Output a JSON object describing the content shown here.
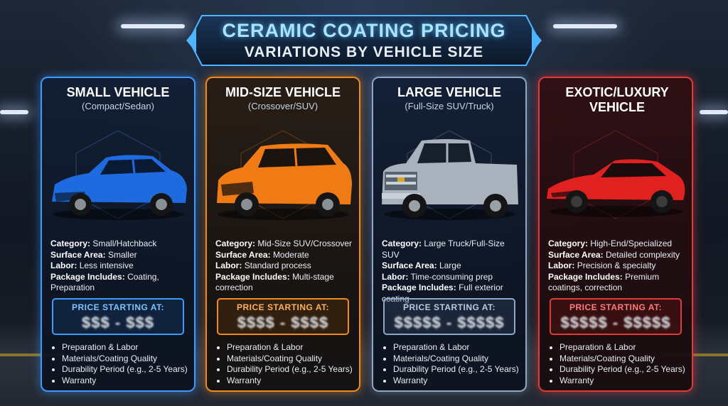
{
  "title": {
    "line1": "CERAMIC COATING PRICING",
    "line2": "VARIATIONS BY VEHICLE SIZE"
  },
  "cards": [
    {
      "title": "SMALL VEHICLE",
      "subtitle": "(Compact/Sedan)",
      "car_color": "#1e6be0",
      "specs": {
        "category_label": "Category:",
        "category": "Small/Hatchback",
        "surface_label": "Surface Area:",
        "surface": "Smaller",
        "labor_label": "Labor:",
        "labor": "Less intensive",
        "package_label": "Package Includes:",
        "package": "Coating, Preparation"
      },
      "price_label": "PRICE STARTING AT:",
      "price": "$$$ - $$$",
      "factors": [
        "Preparation & Labor",
        "Materials/Coating Quality",
        "Durability Period (e.g., 2-5 Years)",
        "Warranty"
      ]
    },
    {
      "title": "MID-SIZE VEHICLE",
      "subtitle": "(Crossover/SUV)",
      "car_color": "#f07a14",
      "specs": {
        "category_label": "Category:",
        "category": "Mid-Size SUV/Crossover",
        "surface_label": "Surface Area:",
        "surface": "Moderate",
        "labor_label": "Labor:",
        "labor": "Standard process",
        "package_label": "Package Includes:",
        "package": "Multi-stage correction"
      },
      "price_label": "PRICE STARTING AT:",
      "price": "$$$$ - $$$$",
      "factors": [
        "Preparation & Labor",
        "Materials/Coating Quality",
        "Durability Period (e.g., 2-5 Years)",
        "Warranty"
      ]
    },
    {
      "title": "LARGE VEHICLE",
      "subtitle": "(Full-Size SUV/Truck)",
      "car_color": "#a9b2bc",
      "specs": {
        "category_label": "Category:",
        "category": "Large Truck/Full-Size SUV",
        "surface_label": "Surface Area:",
        "surface": "Large",
        "labor_label": "Labor:",
        "labor": "Time-consuming prep",
        "package_label": "Package Includes:",
        "package": "Full exterior coating"
      },
      "price_label": "PRICE STARTING AT:",
      "price": "$$$$$ - $$$$$",
      "factors": [
        "Preparation & Labor",
        "Materials/Coating Quality",
        "Durability Period (e.g., 2-5 Years)",
        "Warranty"
      ]
    },
    {
      "title": "EXOTIC/LUXURY VEHICLE",
      "subtitle": "",
      "car_color": "#e0211f",
      "specs": {
        "category_label": "Category:",
        "category": "High-End/Specialized",
        "surface_label": "Surface Area:",
        "surface": "Detailed complexity",
        "labor_label": "Labor:",
        "labor": "Precision & specialty",
        "package_label": "Package Includes:",
        "package": "Premium coatings, correction"
      },
      "price_label": "PRICE STARTING AT:",
      "price": "$$$$$ - $$$$$",
      "factors": [
        "Preparation & Labor",
        "Materials/Coating Quality",
        "Durability Period (e.g., 2-5 Years)",
        "Warranty"
      ]
    }
  ]
}
